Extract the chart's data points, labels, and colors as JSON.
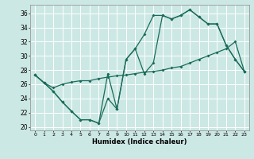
{
  "xlabel": "Humidex (Indice chaleur)",
  "bg_color": "#cce8e4",
  "grid_color": "#ffffff",
  "line_color": "#1a6b5a",
  "xlim": [
    -0.5,
    23.5
  ],
  "ylim": [
    19.5,
    37.2
  ],
  "xticks": [
    0,
    1,
    2,
    3,
    4,
    5,
    6,
    7,
    8,
    9,
    10,
    11,
    12,
    13,
    14,
    15,
    16,
    17,
    18,
    19,
    20,
    21,
    22,
    23
  ],
  "yticks": [
    20,
    22,
    24,
    26,
    28,
    30,
    32,
    34,
    36
  ],
  "line1_x": [
    0,
    1,
    2,
    3,
    4,
    5,
    6,
    7,
    8,
    9,
    10,
    11,
    12,
    13,
    14,
    15,
    16,
    17,
    18,
    19,
    20,
    21,
    22,
    23
  ],
  "line1_y": [
    27.3,
    26.2,
    25.0,
    23.5,
    22.2,
    21.0,
    21.0,
    20.5,
    24.0,
    22.5,
    29.5,
    31.0,
    33.0,
    35.7,
    35.7,
    35.2,
    35.7,
    36.5,
    35.5,
    34.5,
    34.5,
    31.5,
    29.5,
    27.8
  ],
  "line2_x": [
    0,
    1,
    2,
    3,
    4,
    5,
    6,
    7,
    8,
    9,
    10,
    11,
    12,
    13,
    14,
    15,
    16,
    17,
    18,
    19,
    20,
    21,
    22,
    23
  ],
  "line2_y": [
    27.3,
    26.2,
    25.0,
    23.5,
    22.2,
    21.0,
    21.0,
    20.5,
    27.5,
    22.5,
    29.5,
    31.0,
    27.5,
    29.0,
    35.7,
    35.2,
    35.7,
    36.5,
    35.5,
    34.5,
    34.5,
    31.5,
    29.5,
    27.8
  ],
  "line3_x": [
    0,
    1,
    2,
    3,
    4,
    5,
    6,
    7,
    8,
    9,
    10,
    11,
    12,
    13,
    14,
    15,
    16,
    17,
    18,
    19,
    20,
    21,
    22,
    23
  ],
  "line3_y": [
    27.3,
    26.2,
    25.5,
    26.0,
    26.3,
    26.5,
    26.5,
    26.8,
    27.0,
    27.2,
    27.3,
    27.5,
    27.7,
    27.8,
    28.0,
    28.3,
    28.5,
    29.0,
    29.5,
    30.0,
    30.5,
    31.0,
    32.0,
    27.8
  ]
}
